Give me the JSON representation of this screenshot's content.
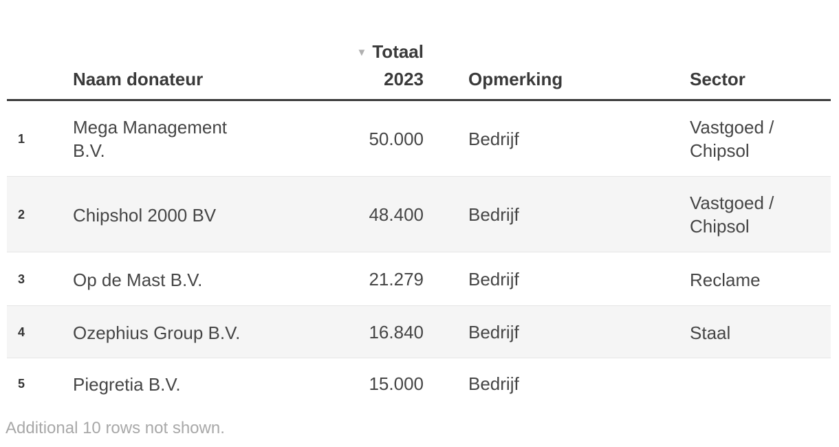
{
  "table": {
    "columns": {
      "num": "",
      "name": "Naam donateur",
      "total_line1": "Totaal",
      "total_line2": "2023",
      "opmerking": "Opmerking",
      "sector": "Sector"
    },
    "sort": {
      "column": "Totaal 2023",
      "direction": "descending",
      "icon": "▼"
    },
    "rows": [
      {
        "num": "1",
        "name": "Mega Management B.V.",
        "total": "50.000",
        "opmerking": "Bedrijf",
        "sector": "Vastgoed / Chipsol"
      },
      {
        "num": "2",
        "name": "Chipshol 2000 BV",
        "total": "48.400",
        "opmerking": "Bedrijf",
        "sector": "Vastgoed / Chipsol"
      },
      {
        "num": "3",
        "name": "Op de Mast B.V.",
        "total": "21.279",
        "opmerking": "Bedrijf",
        "sector": "Reclame"
      },
      {
        "num": "4",
        "name": "Ozephius Group B.V.",
        "total": "16.840",
        "opmerking": "Bedrijf",
        "sector": "Staal"
      },
      {
        "num": "5",
        "name": "Piegretia B.V.",
        "total": "15.000",
        "opmerking": "Bedrijf",
        "sector": ""
      }
    ],
    "footer": "Additional 10 rows not shown."
  },
  "colors": {
    "header_text": "#3a3a3a",
    "body_text": "#454545",
    "zebra_row": "#f5f5f5",
    "row_border": "#e5e5e5",
    "header_border": "#3a3a3a",
    "sort_icon": "#b0b0b0",
    "footer_text": "#a8a8a8"
  }
}
